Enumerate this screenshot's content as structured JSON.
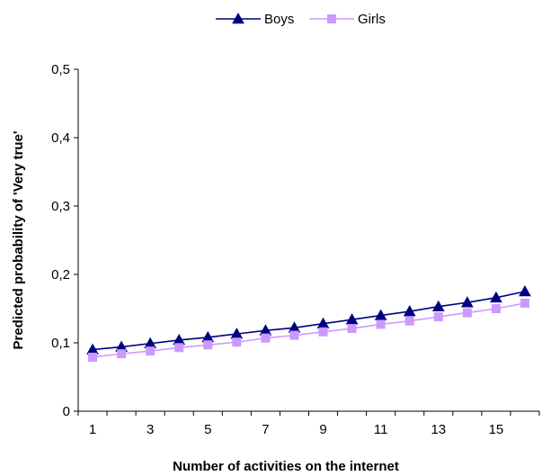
{
  "chart_data": {
    "type": "line",
    "xlabel": "Number of activities on the internet",
    "ylabel": "Predicted probability of 'Very true'",
    "x": [
      1,
      2,
      3,
      4,
      5,
      6,
      7,
      8,
      9,
      10,
      11,
      12,
      13,
      14,
      15,
      16
    ],
    "x_tick_labels": [
      "1",
      "3",
      "5",
      "7",
      "9",
      "11",
      "13",
      "15"
    ],
    "y_tick_labels": [
      "0",
      "0,1",
      "0,2",
      "0,3",
      "0,4",
      "0,5"
    ],
    "y_ticks": [
      0,
      0.1,
      0.2,
      0.3,
      0.4,
      0.5
    ],
    "ylim": [
      0,
      0.5
    ],
    "xlim": [
      0.5,
      16.5
    ],
    "grid": false,
    "legend_position": "top-center",
    "series": [
      {
        "name": "Boys",
        "color": "#000080",
        "marker": "triangle",
        "values": [
          0.09,
          0.094,
          0.099,
          0.104,
          0.108,
          0.113,
          0.118,
          0.122,
          0.128,
          0.134,
          0.14,
          0.146,
          0.153,
          0.159,
          0.166,
          0.175
        ]
      },
      {
        "name": "Girls",
        "color": "#CC99FF",
        "marker": "square",
        "values": [
          0.079,
          0.084,
          0.088,
          0.093,
          0.097,
          0.101,
          0.107,
          0.111,
          0.116,
          0.121,
          0.127,
          0.132,
          0.138,
          0.144,
          0.15,
          0.158
        ]
      }
    ]
  }
}
